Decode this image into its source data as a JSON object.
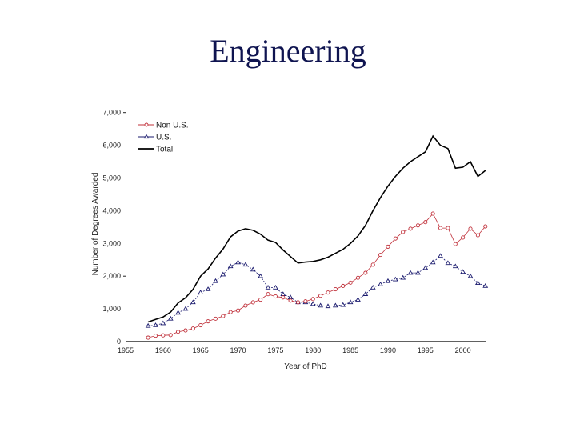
{
  "slide": {
    "title": "Engineering"
  },
  "chart_data": {
    "type": "line",
    "title": "Engineering",
    "xlabel": "Year of PhD",
    "ylabel": "Number of Degrees Awarded",
    "xlim": [
      1955,
      2003
    ],
    "ylim": [
      0,
      7000
    ],
    "xticks": [
      1955,
      1960,
      1965,
      1970,
      1975,
      1980,
      1985,
      1990,
      1995,
      2000
    ],
    "xtick_labels": [
      "1955",
      "1960",
      "1965",
      "1970",
      "1975",
      "1980",
      "1985",
      "1990",
      "1995",
      "2000"
    ],
    "yticks": [
      0,
      1000,
      2000,
      3000,
      4000,
      5000,
      6000,
      7000
    ],
    "ytick_labels": [
      "0",
      "1,000",
      "2,000",
      "3,000",
      "4,000",
      "5,000",
      "6,000",
      "7,000"
    ],
    "grid": false,
    "legend_position": "top-left",
    "x": [
      1958,
      1959,
      1960,
      1961,
      1962,
      1963,
      1964,
      1965,
      1966,
      1967,
      1968,
      1969,
      1970,
      1971,
      1972,
      1973,
      1974,
      1975,
      1976,
      1977,
      1978,
      1979,
      1980,
      1981,
      1982,
      1983,
      1984,
      1985,
      1986,
      1987,
      1988,
      1989,
      1990,
      1991,
      1992,
      1993,
      1994,
      1995,
      1996,
      1997,
      1998,
      1999,
      2000,
      2001,
      2002,
      2003
    ],
    "series": [
      {
        "name": "Non U.S.",
        "color": "#c0303a",
        "marker": "diamond",
        "values": [
          120,
          180,
          190,
          200,
          300,
          340,
          400,
          500,
          620,
          700,
          780,
          900,
          950,
          1100,
          1200,
          1280,
          1450,
          1380,
          1350,
          1250,
          1200,
          1230,
          1300,
          1400,
          1500,
          1600,
          1700,
          1800,
          1950,
          2100,
          2350,
          2650,
          2900,
          3150,
          3350,
          3450,
          3550,
          3650,
          3910,
          3470,
          3470,
          2980,
          3180,
          3450,
          3250,
          3520
        ]
      },
      {
        "name": "U.S.",
        "color": "#1a1a6e",
        "marker": "triangle",
        "values": [
          480,
          500,
          560,
          700,
          880,
          1000,
          1200,
          1500,
          1600,
          1850,
          2050,
          2300,
          2420,
          2350,
          2200,
          2000,
          1650,
          1650,
          1450,
          1350,
          1200,
          1200,
          1150,
          1100,
          1080,
          1100,
          1120,
          1200,
          1280,
          1450,
          1650,
          1750,
          1850,
          1900,
          1950,
          2100,
          2100,
          2250,
          2420,
          2620,
          2400,
          2300,
          2130,
          2000,
          1790,
          1700
        ]
      },
      {
        "name": "Total",
        "color": "#000000",
        "marker": "none",
        "values": [
          600,
          680,
          750,
          900,
          1180,
          1340,
          1600,
          2000,
          2220,
          2550,
          2830,
          3200,
          3380,
          3450,
          3400,
          3280,
          3100,
          3030,
          2800,
          2600,
          2400,
          2430,
          2450,
          2500,
          2580,
          2700,
          2820,
          3000,
          3230,
          3550,
          4000,
          4400,
          4750,
          5050,
          5300,
          5500,
          5650,
          5800,
          6280,
          6000,
          5900,
          5300,
          5330,
          5500,
          5050,
          5230
        ]
      }
    ]
  }
}
